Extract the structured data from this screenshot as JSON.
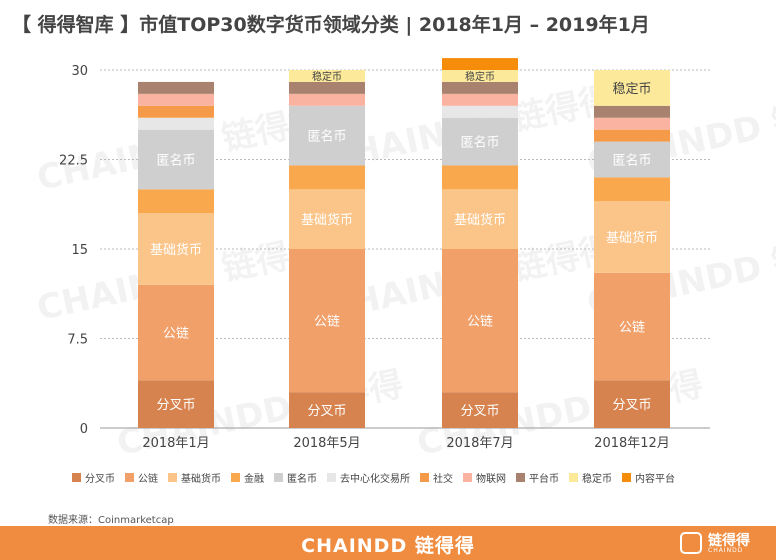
{
  "title": "【 得得智库 】市值TOP30数字货币领域分类 | 2018年1月 – 2019年1月",
  "source": "数据来源：Coinmarketcap",
  "footer": {
    "brand": "CHAINDD 链得得",
    "logo_text": "链得得",
    "logo_sub": "CHAINDD"
  },
  "watermark": "CHAINDD 链得得",
  "colors": {
    "分叉币": "#d6834f",
    "公链": "#f2a06a",
    "基础货币": "#fbc58a",
    "金融": "#f9a84e",
    "匿名币": "#cfcfcf",
    "去中心化交易所": "#e7e7e7",
    "社交": "#f59a48",
    "物联网": "#fbb3a1",
    "平台币": "#a8826e",
    "稳定币": "#fde99a",
    "内容平台": "#f58c0a",
    "footer": "#f08c40",
    "grid": "#bbbbbb",
    "text": "#444444"
  },
  "chart_data": {
    "type": "bar",
    "stacked": true,
    "title": "市值TOP30数字货币领域分类",
    "categories": [
      "2018年1月",
      "2018年5月",
      "2018年7月",
      "2018年12月"
    ],
    "ylim": [
      0,
      30
    ],
    "yticks": [
      "0",
      "7.5",
      "15",
      "22.5",
      "30"
    ],
    "ytick_values": [
      0,
      7.5,
      15,
      22.5,
      30
    ],
    "grid": true,
    "legend_position": "bottom",
    "series": [
      {
        "name": "分叉币",
        "values": [
          4,
          3,
          3,
          4
        ]
      },
      {
        "name": "公链",
        "values": [
          8,
          12,
          12,
          9
        ]
      },
      {
        "name": "基础货币",
        "values": [
          6,
          5,
          5,
          6
        ]
      },
      {
        "name": "金融",
        "values": [
          2,
          2,
          2,
          2
        ]
      },
      {
        "name": "匿名币",
        "values": [
          5,
          5,
          4,
          3
        ]
      },
      {
        "name": "去中心化交易所",
        "values": [
          1,
          0,
          1,
          0
        ]
      },
      {
        "name": "社交",
        "values": [
          1,
          0,
          0,
          1
        ]
      },
      {
        "name": "物联网",
        "values": [
          1,
          1,
          1,
          1
        ]
      },
      {
        "name": "平台币",
        "values": [
          1,
          1,
          1,
          1
        ]
      },
      {
        "name": "稳定币",
        "values": [
          0,
          1,
          1,
          3
        ]
      },
      {
        "name": "内容平台",
        "values": [
          0,
          0,
          1,
          0
        ]
      }
    ],
    "segment_labels": [
      {
        "category": 0,
        "series": "分叉币",
        "text": "分叉币"
      },
      {
        "category": 0,
        "series": "公链",
        "text": "公链"
      },
      {
        "category": 0,
        "series": "基础货币",
        "text": "基础货币"
      },
      {
        "category": 0,
        "series": "匿名币",
        "text": "匿名币"
      },
      {
        "category": 1,
        "series": "分叉币",
        "text": "分叉币"
      },
      {
        "category": 1,
        "series": "公链",
        "text": "公链"
      },
      {
        "category": 1,
        "series": "基础货币",
        "text": "基础货币"
      },
      {
        "category": 1,
        "series": "匿名币",
        "text": "匿名币"
      },
      {
        "category": 1,
        "series": "稳定币",
        "text": "稳定币"
      },
      {
        "category": 2,
        "series": "分叉币",
        "text": "分叉币"
      },
      {
        "category": 2,
        "series": "公链",
        "text": "公链"
      },
      {
        "category": 2,
        "series": "基础货币",
        "text": "基础货币"
      },
      {
        "category": 2,
        "series": "匿名币",
        "text": "匿名币"
      },
      {
        "category": 2,
        "series": "稳定币",
        "text": "稳定币"
      },
      {
        "category": 3,
        "series": "分叉币",
        "text": "分叉币"
      },
      {
        "category": 3,
        "series": "公链",
        "text": "公链"
      },
      {
        "category": 3,
        "series": "基础货币",
        "text": "基础货币"
      },
      {
        "category": 3,
        "series": "匿名币",
        "text": "匿名币"
      },
      {
        "category": 3,
        "series": "稳定币",
        "text": "稳定币"
      }
    ],
    "legend": [
      "分叉币",
      "公链",
      "基础货币",
      "金融",
      "匿名币",
      "去中心化交易所",
      "社交",
      "物联网",
      "平台币",
      "稳定币",
      "内容平台"
    ]
  }
}
